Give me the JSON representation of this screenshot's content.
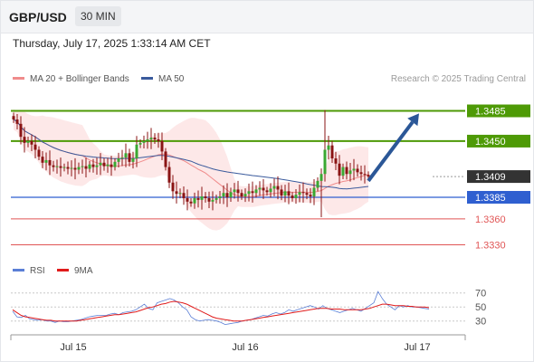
{
  "header": {
    "pair": "GBP/USD",
    "timeframe": "30 MIN",
    "timestamp": "Thursday, July 17, 2025 1:33:14 AM CET"
  },
  "colors": {
    "ma20": "#f08c8c",
    "ma50": "#3a5a9c",
    "band_fill": "#fde4e4",
    "resistance": "#4e9a06",
    "support": "#2f5fd0",
    "lower_support": "#e05555",
    "current": "#333333",
    "arrow": "#2b5797",
    "rsi": "#5b7fd6",
    "rsi_ma": "#e01b1b"
  },
  "chart_data": [
    {
      "type": "candlestick",
      "legend": [
        {
          "name": "MA 20 + Bollinger Bands",
          "color": "#f08c8c"
        },
        {
          "name": "MA 50",
          "color": "#3a5a9c"
        }
      ],
      "watermark": "Research © 2025 Trading Central",
      "x_tick_labels": [
        "Jul 15",
        "Jul 16",
        "Jul 17"
      ],
      "ylim": [
        1.3318,
        1.3496
      ],
      "levels": [
        {
          "value": 1.3485,
          "label": "1.3485",
          "kind": "resistance"
        },
        {
          "value": 1.345,
          "label": "1.3450",
          "kind": "resistance"
        },
        {
          "value": 1.3409,
          "label": "1.3409",
          "kind": "current"
        },
        {
          "value": 1.3385,
          "label": "1.3385",
          "kind": "support"
        },
        {
          "value": 1.336,
          "label": "1.3360",
          "kind": "lower_support"
        },
        {
          "value": 1.333,
          "label": "1.3330",
          "kind": "lower_support"
        }
      ],
      "arrow": {
        "from_index": 98,
        "from_value": 1.3404,
        "to_index": 112,
        "to_value": 1.3482
      },
      "closes": [
        1.3475,
        1.347,
        1.3455,
        1.3448,
        1.345,
        1.3446,
        1.344,
        1.3432,
        1.3425,
        1.3428,
        1.3422,
        1.342,
        1.3421,
        1.3419,
        1.342,
        1.3418,
        1.3419,
        1.3417,
        1.342,
        1.3421,
        1.3418,
        1.3423,
        1.342,
        1.3422,
        1.3425,
        1.3421,
        1.3423,
        1.342,
        1.3426,
        1.343,
        1.3431,
        1.3436,
        1.3426,
        1.343,
        1.3446,
        1.3448,
        1.345,
        1.3452,
        1.3454,
        1.3452,
        1.345,
        1.3438,
        1.342,
        1.3402,
        1.3392,
        1.3389,
        1.339,
        1.3384,
        1.338,
        1.3378,
        1.3384,
        1.3382,
        1.3386,
        1.3384,
        1.338,
        1.3382,
        1.3384,
        1.3386,
        1.339,
        1.3385,
        1.3391,
        1.3394,
        1.339,
        1.3386,
        1.3389,
        1.3392,
        1.339,
        1.3394,
        1.3396,
        1.3393,
        1.3391,
        1.3395,
        1.3398,
        1.3394,
        1.3387,
        1.3392,
        1.3387,
        1.3384,
        1.3388,
        1.3391,
        1.339,
        1.3388,
        1.3386,
        1.3396,
        1.3404,
        1.3412,
        1.344,
        1.3445,
        1.343,
        1.3424,
        1.341,
        1.342,
        1.3412,
        1.3416,
        1.3418,
        1.3414,
        1.3412,
        1.3411,
        1.3409
      ],
      "sma20_start_index": 10,
      "sma50_start_index": 0
    },
    {
      "type": "line",
      "legend": [
        {
          "name": "RSI",
          "color": "#5b7fd6"
        },
        {
          "name": "9MA",
          "color": "#e01b1b"
        }
      ],
      "ylim": [
        18,
        80
      ],
      "y_ticks": [
        70,
        50,
        30
      ],
      "series": [
        {
          "name": "RSI",
          "values": [
            44,
            36,
            35,
            38,
            33,
            32,
            31,
            32,
            30,
            30,
            28,
            30,
            29,
            29,
            30,
            31,
            32,
            34,
            36,
            37,
            38,
            38,
            38,
            40,
            41,
            39,
            42,
            43,
            44,
            46,
            50,
            54,
            48,
            46,
            56,
            58,
            60,
            62,
            60,
            56,
            50,
            46,
            36,
            32,
            30,
            31,
            32,
            31,
            30,
            28,
            25,
            26,
            27,
            28,
            30,
            31,
            32,
            34,
            36,
            38,
            37,
            40,
            42,
            40,
            42,
            46,
            44,
            46,
            48,
            50,
            52,
            50,
            47,
            52,
            48,
            46,
            44,
            42,
            44,
            46,
            48,
            46,
            44,
            48,
            52,
            56,
            72,
            62,
            54,
            50,
            46,
            52,
            50,
            52,
            50,
            50,
            49,
            48,
            47
          ]
        },
        {
          "name": "9MA",
          "values": [
            46,
            42,
            38,
            36,
            35,
            34,
            33,
            32,
            31,
            31,
            30,
            30,
            30,
            30,
            30,
            30,
            31,
            32,
            33,
            34,
            35,
            36,
            37,
            38,
            39,
            39,
            40,
            41,
            42,
            43,
            45,
            47,
            49,
            50,
            52,
            54,
            55,
            57,
            58,
            57,
            56,
            54,
            51,
            48,
            45,
            42,
            39,
            36,
            34,
            33,
            32,
            31,
            30,
            30,
            30,
            31,
            32,
            33,
            34,
            35,
            36,
            37,
            38,
            39,
            40,
            41,
            42,
            43,
            44,
            45,
            46,
            47,
            48,
            48,
            48,
            47,
            47,
            47,
            46,
            46,
            46,
            46,
            46,
            47,
            48,
            50,
            52,
            54,
            54,
            53,
            52,
            52,
            52,
            51,
            51,
            50,
            50,
            50,
            49
          ]
        }
      ]
    }
  ]
}
